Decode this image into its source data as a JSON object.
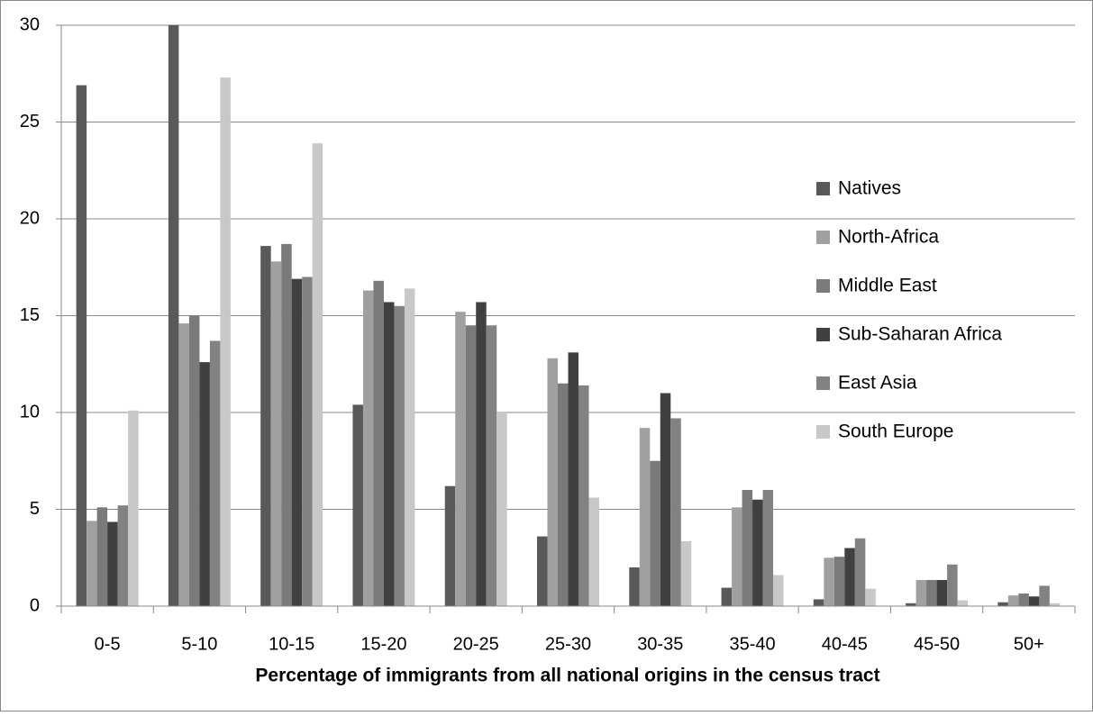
{
  "chart_data": {
    "type": "bar",
    "xlabel": "Percentage of immigrants from all national origins in the census tract",
    "categories": [
      "0-5",
      "5-10",
      "10-15",
      "15-20",
      "20-25",
      "25-30",
      "30-35",
      "35-40",
      "40-45",
      "45-50",
      "50+"
    ],
    "series": [
      {
        "name": "Natives",
        "color": "#595959",
        "values": [
          26.9,
          30,
          18.6,
          10.4,
          6.2,
          3.6,
          2.0,
          0.95,
          0.35,
          0.15,
          0.2
        ]
      },
      {
        "name": "North-Africa",
        "color": "#a0a0a0",
        "values": [
          4.4,
          14.6,
          17.8,
          16.3,
          15.2,
          12.8,
          9.2,
          5.1,
          2.5,
          1.35,
          0.55
        ]
      },
      {
        "name": "Middle East",
        "color": "#7a7a7a",
        "values": [
          5.1,
          15.0,
          18.7,
          16.8,
          14.5,
          11.5,
          7.5,
          6.0,
          2.55,
          1.35,
          0.65
        ]
      },
      {
        "name": "Sub-Saharan Africa",
        "color": "#404040",
        "values": [
          4.35,
          12.6,
          16.9,
          15.7,
          15.7,
          13.1,
          11.0,
          5.5,
          3.0,
          1.35,
          0.5
        ]
      },
      {
        "name": "East Asia",
        "color": "#828282",
        "values": [
          5.2,
          13.7,
          17.0,
          15.5,
          14.5,
          11.4,
          9.7,
          6.0,
          3.5,
          2.15,
          1.05
        ]
      },
      {
        "name": "South Europe",
        "color": "#c8c8c8",
        "values": [
          10.1,
          27.3,
          23.9,
          16.4,
          10.0,
          5.6,
          3.35,
          1.6,
          0.9,
          0.3,
          0.15
        ]
      }
    ],
    "ylim": [
      0,
      30
    ],
    "yticks": [
      0,
      5,
      10,
      15,
      20,
      25,
      30
    ],
    "grid": true,
    "legend": "right"
  }
}
